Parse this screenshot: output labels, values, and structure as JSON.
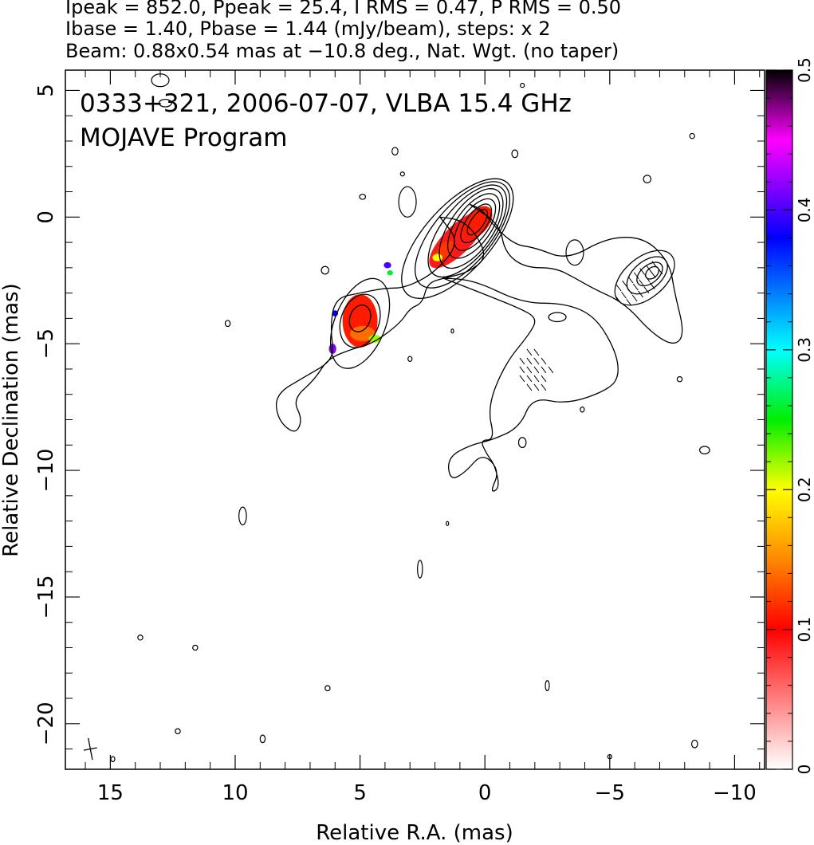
{
  "header": {
    "line1": "Ipeak = 852.0, Ppeak = 25.4, I RMS = 0.47, P RMS = 0.50",
    "line2": "Ibase = 1.40, Pbase = 1.44 (mJy/beam), steps: x 2",
    "line3": "Beam: 0.88x0.54 mas at −10.8 deg., Nat. Wgt. (no taper)"
  },
  "plot": {
    "title": "0333+321, 2006-07-07, VLBA 15.4 GHz",
    "subtitle": "MOJAVE Program"
  },
  "chart_data": {
    "type": "heatmap",
    "description_kind": "radio contour map with fractional polarization color overlay",
    "xlabel": "Relative R.A. (mas)",
    "ylabel": "Relative Declination (mas)",
    "xlim": [
      16.8,
      -11.2
    ],
    "ylim": [
      -21.8,
      5.8
    ],
    "x_ticks": [
      15,
      10,
      5,
      0,
      -5,
      -10
    ],
    "x_tick_labels": [
      "15",
      "10",
      "5",
      "0",
      "−5",
      "−10"
    ],
    "y_ticks": [
      5,
      0,
      -5,
      -10,
      -15,
      -20
    ],
    "y_tick_labels": [
      "5",
      "0",
      "−5",
      "−10",
      "−15",
      "−20"
    ],
    "grid": false,
    "colorbar": {
      "range": [
        0,
        0.5
      ],
      "ticks": [
        0,
        0.1,
        0.2,
        0.3,
        0.4,
        0.5
      ],
      "tick_labels": [
        "0",
        "0.1",
        "0.2",
        "0.3",
        "0.4",
        "0.5"
      ],
      "stops": [
        {
          "v": 0.0,
          "color": "#ffffff"
        },
        {
          "v": 0.1,
          "color": "#ff0000"
        },
        {
          "v": 0.15,
          "color": "#ff8800"
        },
        {
          "v": 0.2,
          "color": "#ffff00"
        },
        {
          "v": 0.25,
          "color": "#00ee00"
        },
        {
          "v": 0.3,
          "color": "#00ffff"
        },
        {
          "v": 0.38,
          "color": "#0000ff"
        },
        {
          "v": 0.45,
          "color": "#ff00ff"
        },
        {
          "v": 0.5,
          "color": "#000000"
        }
      ]
    },
    "intensity_contours": [
      {
        "cx": 0.3,
        "cy": -0.2,
        "rx": 0.6,
        "ry": 0.25,
        "angle": 55
      },
      {
        "cx": 0.35,
        "cy": -0.25,
        "rx": 0.9,
        "ry": 0.4,
        "angle": 55
      },
      {
        "cx": 0.4,
        "cy": -0.3,
        "rx": 1.2,
        "ry": 0.55,
        "angle": 55
      },
      {
        "cx": 0.45,
        "cy": -0.35,
        "rx": 1.5,
        "ry": 0.7,
        "angle": 55
      },
      {
        "cx": 0.55,
        "cy": -0.45,
        "rx": 1.85,
        "ry": 0.85,
        "angle": 55
      },
      {
        "cx": 0.7,
        "cy": -0.55,
        "rx": 2.2,
        "ry": 1.0,
        "angle": 52
      },
      {
        "cx": 0.9,
        "cy": -0.7,
        "rx": 2.6,
        "ry": 1.15,
        "angle": 50
      },
      {
        "cx": 1.1,
        "cy": -0.85,
        "rx": 3.0,
        "ry": 1.3,
        "angle": 48
      },
      {
        "cx": 5.0,
        "cy": -4.0,
        "rx": 0.55,
        "ry": 0.4,
        "angle": 70
      },
      {
        "cx": 5.0,
        "cy": -4.1,
        "rx": 1.1,
        "ry": 0.75,
        "angle": 70
      },
      {
        "cx": 5.0,
        "cy": -4.2,
        "rx": 1.9,
        "ry": 1.0,
        "angle": 68
      },
      {
        "cx": -6.7,
        "cy": -2.2,
        "rx": 0.3,
        "ry": 0.2,
        "angle": 40
      },
      {
        "cx": -6.6,
        "cy": -2.25,
        "rx": 0.6,
        "ry": 0.35,
        "angle": 40
      },
      {
        "cx": -6.5,
        "cy": -2.3,
        "rx": 0.95,
        "ry": 0.55,
        "angle": 40
      },
      {
        "cx": -6.4,
        "cy": -2.4,
        "rx": 1.4,
        "ry": 0.8,
        "angle": 40
      },
      {
        "cx": -2.9,
        "cy": -3.95,
        "rx": 0.35,
        "ry": 0.18,
        "angle": 0
      }
    ],
    "outer_contours": [
      [
        [
          0.6,
          0.5
        ],
        [
          -0.6,
          -0.3
        ],
        [
          -0.8,
          -1.4
        ],
        [
          -1.6,
          -2.0
        ],
        [
          -2.8,
          -2.0
        ],
        [
          -3.6,
          -2.4
        ],
        [
          -4.3,
          -2.8
        ],
        [
          -5.6,
          -3.4
        ],
        [
          -6.7,
          -4.6
        ],
        [
          -7.6,
          -5.1
        ],
        [
          -8.0,
          -4.6
        ],
        [
          -7.6,
          -3.0
        ],
        [
          -7.4,
          -1.8
        ],
        [
          -6.4,
          -0.8
        ],
        [
          -4.9,
          -0.8
        ],
        [
          -3.3,
          -1.7
        ],
        [
          -2.0,
          -1.2
        ],
        [
          -1.2,
          -1.1
        ],
        [
          -0.3,
          -0.3
        ],
        [
          0.1,
          0.3
        ],
        [
          0.6,
          0.5
        ]
      ],
      [
        [
          1.8,
          0.0
        ],
        [
          1.0,
          -1.0
        ],
        [
          2.0,
          -2.2
        ],
        [
          3.2,
          -2.8
        ],
        [
          4.0,
          -2.8
        ],
        [
          5.0,
          -3.0
        ],
        [
          6.0,
          -3.2
        ],
        [
          6.2,
          -4.4
        ],
        [
          6.0,
          -5.6
        ],
        [
          7.2,
          -6.3
        ],
        [
          8.4,
          -7.0
        ],
        [
          8.3,
          -8.0
        ],
        [
          7.6,
          -8.6
        ],
        [
          7.3,
          -8.0
        ],
        [
          7.7,
          -7.2
        ],
        [
          6.8,
          -6.4
        ],
        [
          6.3,
          -5.6
        ],
        [
          5.3,
          -5.2
        ],
        [
          4.5,
          -5.0
        ],
        [
          3.4,
          -4.2
        ],
        [
          3.0,
          -3.6
        ],
        [
          2.5,
          -3.4
        ],
        [
          2.3,
          -2.6
        ],
        [
          1.6,
          -2.4
        ],
        [
          0.7,
          -2.2
        ],
        [
          -0.1,
          -1.6
        ],
        [
          0.4,
          -0.6
        ],
        [
          1.0,
          -0.1
        ],
        [
          1.8,
          0.0
        ]
      ],
      [
        [
          1.7,
          -2.4
        ],
        [
          0.4,
          -2.5
        ],
        [
          -1.5,
          -3.4
        ],
        [
          -3.2,
          -3.4
        ],
        [
          -4.4,
          -3.9
        ],
        [
          -5.2,
          -5.2
        ],
        [
          -5.4,
          -6.2
        ],
        [
          -5.0,
          -6.8
        ],
        [
          -3.3,
          -7.4
        ],
        [
          -1.9,
          -7.1
        ],
        [
          -1.4,
          -8.3
        ],
        [
          -0.3,
          -8.8
        ],
        [
          0.6,
          -9.0
        ],
        [
          1.5,
          -9.5
        ],
        [
          1.4,
          -10.4
        ],
        [
          0.8,
          -10.1
        ],
        [
          0.1,
          -9.3
        ],
        [
          -0.6,
          -10.0
        ],
        [
          -0.2,
          -10.9
        ],
        [
          -0.6,
          -10.7
        ],
        [
          -0.4,
          -9.8
        ],
        [
          -0.1,
          -9.4
        ],
        [
          0.2,
          -8.8
        ],
        [
          -0.4,
          -8.8
        ],
        [
          -0.1,
          -7.5
        ],
        [
          -0.8,
          -5.8
        ],
        [
          -1.8,
          -4.6
        ],
        [
          -2.1,
          -4.0
        ],
        [
          -1.4,
          -3.6
        ],
        [
          0.4,
          -2.9
        ],
        [
          1.7,
          -2.4
        ]
      ]
    ],
    "small_contours": [
      {
        "cx": 13.0,
        "cy": 5.4,
        "rx": 0.35,
        "ry": 0.25
      },
      {
        "cx": 12.8,
        "cy": 4.5,
        "rx": 0.25,
        "ry": 0.15
      },
      {
        "cx": 3.6,
        "cy": 2.6,
        "rx": 0.12,
        "ry": 0.15
      },
      {
        "cx": -1.2,
        "cy": 2.5,
        "rx": 0.12,
        "ry": 0.15
      },
      {
        "cx": 3.3,
        "cy": 1.7,
        "rx": 0.08,
        "ry": 0.08
      },
      {
        "cx": 4.9,
        "cy": 0.8,
        "rx": 0.12,
        "ry": 0.1
      },
      {
        "cx": 3.1,
        "cy": 0.6,
        "rx": 0.35,
        "ry": 0.6
      },
      {
        "cx": -6.5,
        "cy": 1.5,
        "rx": 0.15,
        "ry": 0.15
      },
      {
        "cx": -8.3,
        "cy": 3.2,
        "rx": 0.1,
        "ry": 0.1
      },
      {
        "cx": -1.5,
        "cy": 5.2,
        "rx": 0.08,
        "ry": 0.08
      },
      {
        "cx": 6.4,
        "cy": -2.1,
        "rx": 0.15,
        "ry": 0.15
      },
      {
        "cx": -3.6,
        "cy": -1.4,
        "rx": 0.35,
        "ry": 0.5
      },
      {
        "cx": 10.3,
        "cy": -4.2,
        "rx": 0.1,
        "ry": 0.12
      },
      {
        "cx": 1.3,
        "cy": -4.5,
        "rx": 0.05,
        "ry": 0.08
      },
      {
        "cx": 3.0,
        "cy": -5.6,
        "rx": 0.08,
        "ry": 0.1
      },
      {
        "cx": -1.5,
        "cy": -8.9,
        "rx": 0.15,
        "ry": 0.2
      },
      {
        "cx": -3.9,
        "cy": -7.6,
        "rx": 0.08,
        "ry": 0.1
      },
      {
        "cx": -7.8,
        "cy": -6.4,
        "rx": 0.1,
        "ry": 0.1
      },
      {
        "cx": -8.8,
        "cy": -9.2,
        "rx": 0.2,
        "ry": 0.15
      },
      {
        "cx": 9.7,
        "cy": -11.8,
        "rx": 0.15,
        "ry": 0.35
      },
      {
        "cx": 1.5,
        "cy": -12.1,
        "rx": 0.05,
        "ry": 0.08
      },
      {
        "cx": 2.6,
        "cy": -13.9,
        "rx": 0.1,
        "ry": 0.35
      },
      {
        "cx": 13.8,
        "cy": -16.6,
        "rx": 0.1,
        "ry": 0.1
      },
      {
        "cx": 11.6,
        "cy": -17.0,
        "rx": 0.1,
        "ry": 0.1
      },
      {
        "cx": 6.3,
        "cy": -18.6,
        "rx": 0.1,
        "ry": 0.1
      },
      {
        "cx": -2.5,
        "cy": -18.5,
        "rx": 0.08,
        "ry": 0.2
      },
      {
        "cx": 12.3,
        "cy": -20.3,
        "rx": 0.1,
        "ry": 0.1
      },
      {
        "cx": 8.9,
        "cy": -20.6,
        "rx": 0.1,
        "ry": 0.15
      },
      {
        "cx": -8.4,
        "cy": -20.8,
        "rx": 0.12,
        "ry": 0.15
      },
      {
        "cx": 14.9,
        "cy": -21.4,
        "rx": 0.08,
        "ry": 0.1
      },
      {
        "cx": -5.0,
        "cy": -21.3,
        "rx": 0.08,
        "ry": 0.08
      }
    ],
    "polarization_patches": [
      {
        "cx": 1.1,
        "cy": -0.9,
        "rx": 1.5,
        "ry": 0.55,
        "angle": 45,
        "frac": 0.09
      },
      {
        "cx": 0.3,
        "cy": -0.2,
        "rx": 0.75,
        "ry": 0.45,
        "angle": 50,
        "frac": 0.11
      },
      {
        "cx": 1.6,
        "cy": -1.3,
        "rx": 0.45,
        "ry": 0.25,
        "angle": 45,
        "frac": 0.12
      },
      {
        "cx": 5.0,
        "cy": -4.1,
        "rx": 0.7,
        "ry": 1.05,
        "angle": 0,
        "frac": 0.11
      },
      {
        "cx": 4.9,
        "cy": -4.6,
        "rx": 0.5,
        "ry": 0.3,
        "angle": 0,
        "frac": 0.14
      },
      {
        "cx": 4.4,
        "cy": -4.8,
        "rx": 0.25,
        "ry": 0.15,
        "angle": 0,
        "frac": 0.22
      },
      {
        "cx": 6.0,
        "cy": -3.8,
        "rx": 0.12,
        "ry": 0.12,
        "angle": 0,
        "frac": 0.38
      },
      {
        "cx": 6.1,
        "cy": -5.2,
        "rx": 0.15,
        "ry": 0.2,
        "angle": 0,
        "frac": 0.42
      },
      {
        "cx": 3.9,
        "cy": -1.9,
        "rx": 0.15,
        "ry": 0.12,
        "angle": 0,
        "frac": 0.4
      },
      {
        "cx": 3.8,
        "cy": -2.2,
        "rx": 0.12,
        "ry": 0.1,
        "angle": 0,
        "frac": 0.26
      },
      {
        "cx": 1.9,
        "cy": -1.6,
        "rx": 0.2,
        "ry": 0.15,
        "angle": 0,
        "frac": 0.2
      }
    ],
    "evpa_regions": [
      {
        "cx": -6.0,
        "cy": -2.8,
        "rx": 1.0,
        "ry": 0.55,
        "angle": 35
      },
      {
        "cx": -6.8,
        "cy": -2.0,
        "rx": 0.4,
        "ry": 0.3,
        "angle": 40
      },
      {
        "cx": -2.0,
        "cy": -6.1,
        "rx": 0.7,
        "ry": 0.95,
        "angle": 0
      }
    ],
    "beam": {
      "cx": 15.8,
      "cy": -21.0,
      "major": 0.88,
      "minor": 0.54,
      "pa_deg": -10.8
    }
  }
}
